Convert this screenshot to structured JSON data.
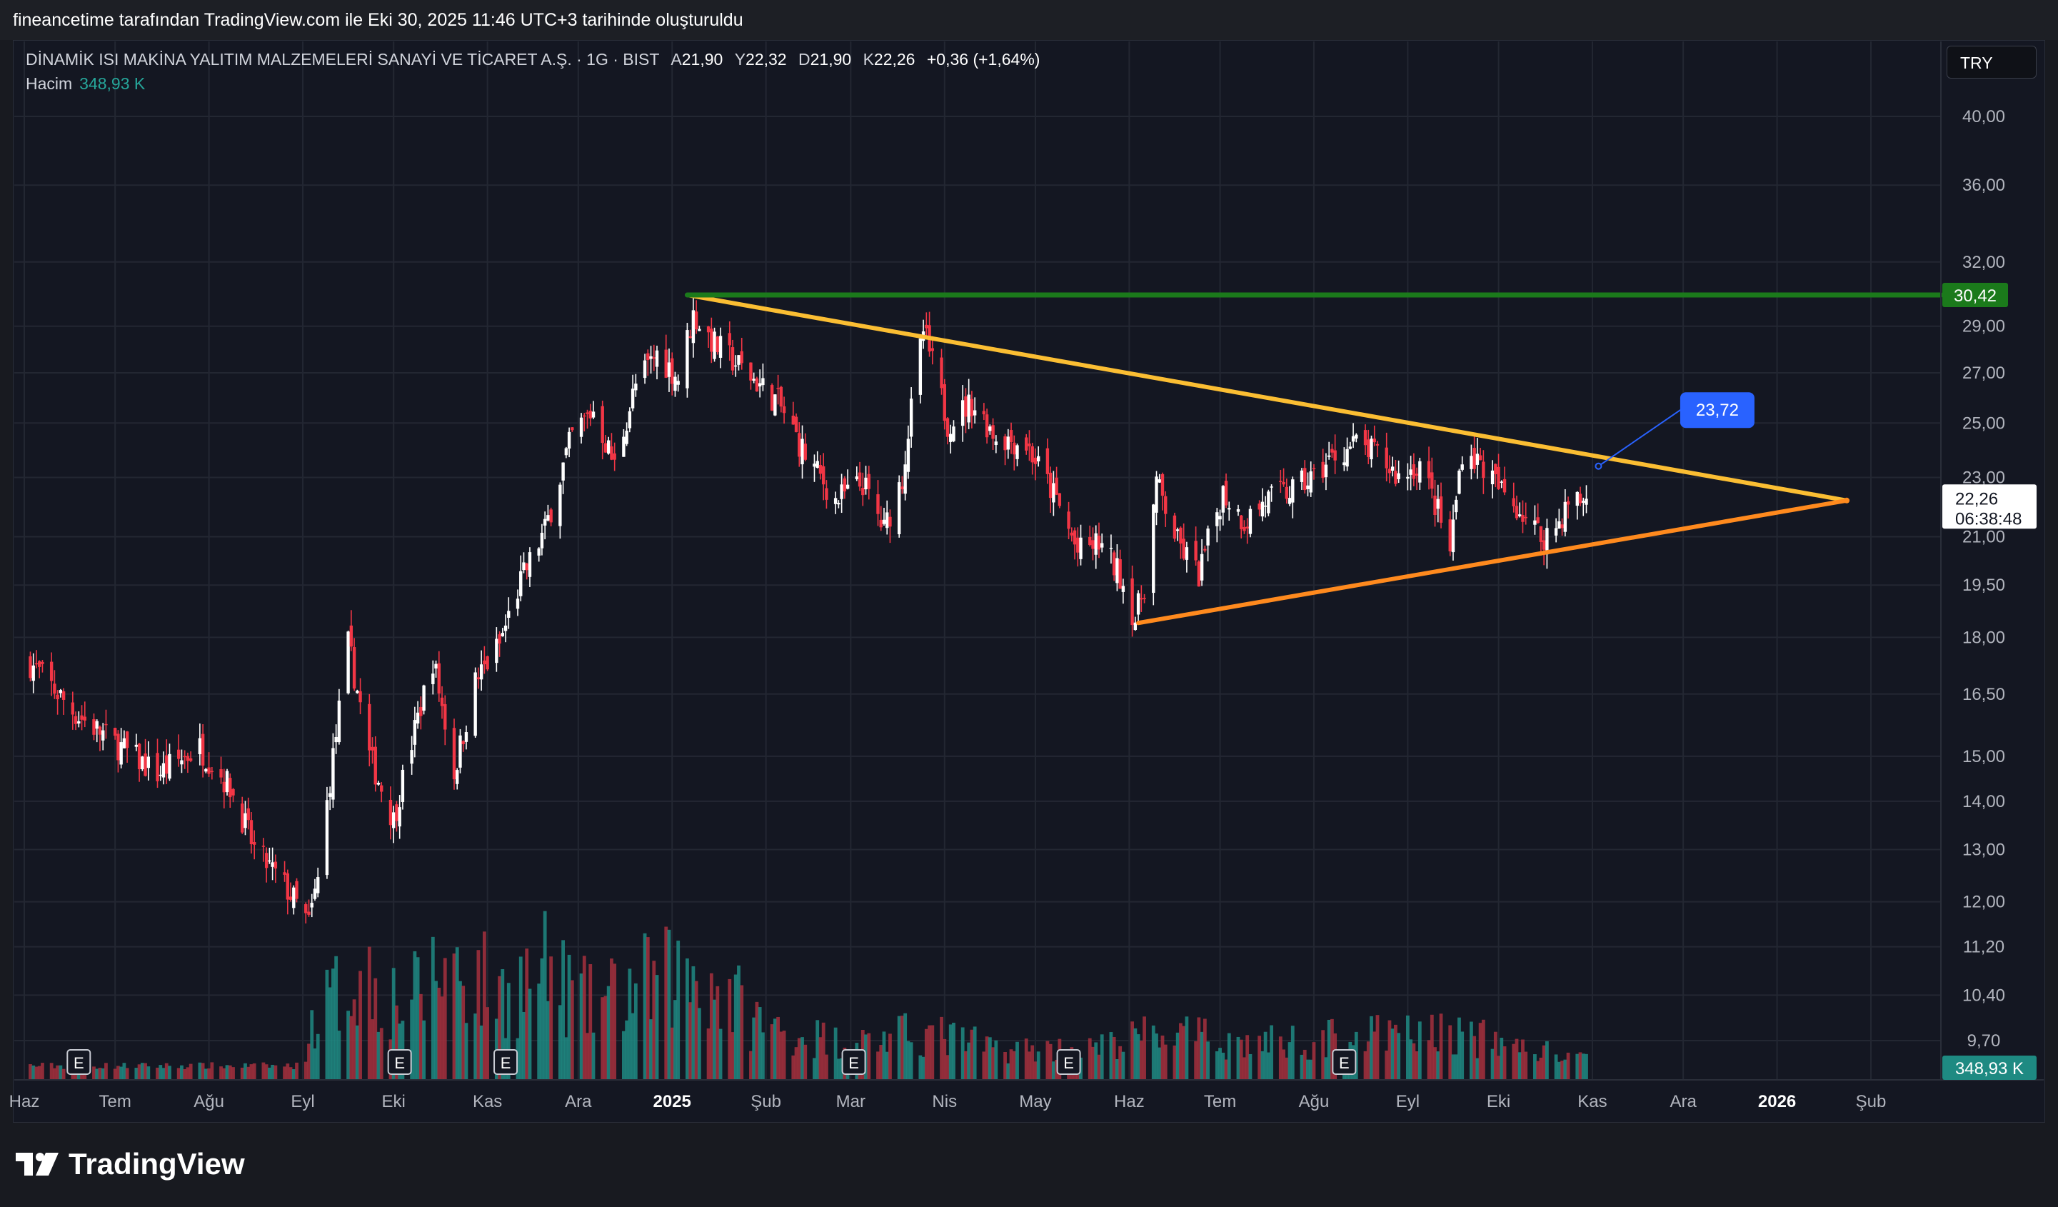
{
  "header": {
    "author_line": "fineancetime tarafından TradingView.com ile Eki 30, 2025 11:46 UTC+3 tarihinde oluşturuldu"
  },
  "legend": {
    "symbol": "DİNAMİK ISI MAKİNA YALITIM MALZEMELERİ SANAYİ VE TİCARET A.Ş. · 1G · BIST",
    "o_label": "A",
    "o": "21,90",
    "h_label": "Y",
    "h": "22,32",
    "l_label": "D",
    "l": "21,90",
    "c_label": "K",
    "c": "22,26",
    "change": "+0,36 (+1,64%)",
    "volume_label": "Hacim",
    "volume": "348,93 K"
  },
  "currency_button": "TRY",
  "price_badge": {
    "price": "22,26",
    "countdown": "06:38:48"
  },
  "volume_badge": "348,93 K",
  "level_badge": "30,42",
  "projection_label": "23,72",
  "earnings_marker": "E",
  "footer": {
    "logo_text": "TradingView"
  },
  "colors": {
    "up": "#ffffff",
    "down": "#f23645",
    "vol_up": "#1e8a82",
    "vol_down": "#a5303d",
    "resistance": "#fbbe33",
    "support": "#ff8a1e",
    "level": "#1b7a1b",
    "label_blue": "#2962ff"
  },
  "chart_data": {
    "type": "candlestick",
    "scale": "log",
    "y_ticks": [
      "40,00",
      "36,00",
      "32,00",
      "29,00",
      "27,00",
      "25,00",
      "23,00",
      "21,00",
      "19,50",
      "18,00",
      "16,50",
      "15,00",
      "14,00",
      "13,00",
      "12,00",
      "11,20",
      "10,40",
      "9,70"
    ],
    "y_tick_values": [
      40,
      36,
      32,
      29,
      27,
      25,
      23,
      21,
      19.5,
      18,
      16.5,
      15,
      14,
      13,
      12,
      11.2,
      10.4,
      9.7
    ],
    "x_ticks": [
      {
        "label": "Haz",
        "date": "2024-06-01",
        "bold": false
      },
      {
        "label": "Tem",
        "date": "2024-07-01",
        "bold": false
      },
      {
        "label": "Ağu",
        "date": "2024-08-01",
        "bold": false
      },
      {
        "label": "Eyl",
        "date": "2024-09-01",
        "bold": false
      },
      {
        "label": "Eki",
        "date": "2024-10-01",
        "bold": false
      },
      {
        "label": "Kas",
        "date": "2024-11-01",
        "bold": false
      },
      {
        "label": "Ara",
        "date": "2024-12-01",
        "bold": false
      },
      {
        "label": "2025",
        "date": "2025-01-01",
        "bold": true
      },
      {
        "label": "Şub",
        "date": "2025-02-01",
        "bold": false
      },
      {
        "label": "Mar",
        "date": "2025-03-01",
        "bold": false
      },
      {
        "label": "Nis",
        "date": "2025-04-01",
        "bold": false
      },
      {
        "label": "May",
        "date": "2025-05-01",
        "bold": false
      },
      {
        "label": "Haz",
        "date": "2025-06-01",
        "bold": false
      },
      {
        "label": "Tem",
        "date": "2025-07-01",
        "bold": false
      },
      {
        "label": "Ağu",
        "date": "2025-08-01",
        "bold": false
      },
      {
        "label": "Eyl",
        "date": "2025-09-01",
        "bold": false
      },
      {
        "label": "Eki",
        "date": "2025-10-01",
        "bold": false
      },
      {
        "label": "Kas",
        "date": "2025-11-01",
        "bold": false
      },
      {
        "label": "Ara",
        "date": "2025-12-01",
        "bold": false
      },
      {
        "label": "2026",
        "date": "2026-01-01",
        "bold": true
      },
      {
        "label": "Şub",
        "date": "2026-02-01",
        "bold": false
      }
    ],
    "close_path": [
      [
        "2024-06-03",
        17.3
      ],
      [
        "2024-06-18",
        16.0
      ],
      [
        "2024-07-01",
        15.3
      ],
      [
        "2024-07-15",
        14.6
      ],
      [
        "2024-07-29",
        15.2
      ],
      [
        "2024-08-08",
        14.3
      ],
      [
        "2024-08-16",
        13.0
      ],
      [
        "2024-08-26",
        12.3
      ],
      [
        "2024-09-03",
        11.6
      ],
      [
        "2024-09-06",
        12.4
      ],
      [
        "2024-09-12",
        15.5
      ],
      [
        "2024-09-16",
        17.8
      ],
      [
        "2024-09-23",
        15.0
      ],
      [
        "2024-10-01",
        13.6
      ],
      [
        "2024-10-08",
        15.6
      ],
      [
        "2024-10-14",
        17.4
      ],
      [
        "2024-10-21",
        14.6
      ],
      [
        "2024-10-28",
        16.8
      ],
      [
        "2024-11-05",
        17.8
      ],
      [
        "2024-11-12",
        19.6
      ],
      [
        "2024-11-20",
        21.2
      ],
      [
        "2024-11-29",
        24.5
      ],
      [
        "2024-12-06",
        25.5
      ],
      [
        "2024-12-13",
        23.4
      ],
      [
        "2024-12-20",
        26.5
      ],
      [
        "2024-12-27",
        27.8
      ],
      [
        "2025-01-03",
        26.8
      ],
      [
        "2025-01-08",
        29.5
      ],
      [
        "2025-01-15",
        28.2
      ],
      [
        "2025-01-24",
        27.2
      ],
      [
        "2025-02-05",
        25.8
      ],
      [
        "2025-02-14",
        23.8
      ],
      [
        "2025-02-24",
        22.2
      ],
      [
        "2025-03-05",
        22.8
      ],
      [
        "2025-03-12",
        21.2
      ],
      [
        "2025-03-18",
        23.0
      ],
      [
        "2025-03-25",
        28.8
      ],
      [
        "2025-04-02",
        25.0
      ],
      [
        "2025-04-10",
        25.8
      ],
      [
        "2025-04-18",
        24.5
      ],
      [
        "2025-04-28",
        24.2
      ],
      [
        "2025-05-08",
        22.2
      ],
      [
        "2025-05-15",
        20.5
      ],
      [
        "2025-05-22",
        20.8
      ],
      [
        "2025-05-29",
        19.8
      ],
      [
        "2025-06-03",
        18.5
      ],
      [
        "2025-06-06",
        19.5
      ],
      [
        "2025-06-10",
        22.8
      ],
      [
        "2025-06-17",
        20.8
      ],
      [
        "2025-06-24",
        19.8
      ],
      [
        "2025-07-02",
        22.5
      ],
      [
        "2025-07-09",
        21.5
      ],
      [
        "2025-07-16",
        22.2
      ],
      [
        "2025-07-24",
        22.5
      ],
      [
        "2025-08-01",
        23.0
      ],
      [
        "2025-08-08",
        23.8
      ],
      [
        "2025-08-15",
        24.2
      ],
      [
        "2025-08-22",
        23.8
      ],
      [
        "2025-08-29",
        23.0
      ],
      [
        "2025-09-05",
        23.5
      ],
      [
        "2025-09-11",
        21.8
      ],
      [
        "2025-09-15",
        20.5
      ],
      [
        "2025-09-19",
        24.0
      ],
      [
        "2025-09-25",
        23.5
      ],
      [
        "2025-10-02",
        22.5
      ],
      [
        "2025-10-09",
        21.8
      ],
      [
        "2025-10-15",
        21.0
      ],
      [
        "2025-10-20",
        21.3
      ],
      [
        "2025-10-24",
        22.1
      ],
      [
        "2025-10-30",
        22.26
      ]
    ],
    "volume_profile": [
      [
        "2024-06-01",
        0.05
      ],
      [
        "2024-08-31",
        0.05
      ],
      [
        "2024-09-05",
        0.5
      ],
      [
        "2024-09-20",
        0.9
      ],
      [
        "2024-10-05",
        0.6
      ],
      [
        "2024-10-20",
        1.0
      ],
      [
        "2024-11-05",
        0.7
      ],
      [
        "2024-11-20",
        0.9
      ],
      [
        "2024-12-05",
        0.6
      ],
      [
        "2024-12-25",
        0.8
      ],
      [
        "2025-01-10",
        0.9
      ],
      [
        "2025-02-01",
        0.4
      ],
      [
        "2025-03-01",
        0.25
      ],
      [
        "2025-03-25",
        0.35
      ],
      [
        "2025-04-20",
        0.2
      ],
      [
        "2025-05-20",
        0.2
      ],
      [
        "2025-06-10",
        0.35
      ],
      [
        "2025-07-10",
        0.25
      ],
      [
        "2025-08-10",
        0.3
      ],
      [
        "2025-09-15",
        0.35
      ],
      [
        "2025-10-30",
        0.1
      ]
    ],
    "earnings_dates": [
      "2024-06-19",
      "2024-10-03",
      "2024-11-07",
      "2025-03-02",
      "2025-05-12",
      "2025-08-11"
    ],
    "lines": [
      {
        "name": "resistance",
        "from": [
          "2025-01-06",
          30.42
        ],
        "to": [
          "2026-01-24",
          22.2
        ]
      },
      {
        "name": "support",
        "from": [
          "2025-06-04",
          18.4
        ],
        "to": [
          "2026-01-24",
          22.2
        ]
      },
      {
        "name": "level",
        "from": [
          "2025-01-06",
          30.42
        ],
        "to": [
          "2026-03-01",
          30.42
        ]
      },
      {
        "name": "projection",
        "from": [
          "2025-11-03",
          23.4
        ],
        "to": [
          "2025-11-30",
          25.5
        ]
      }
    ]
  }
}
